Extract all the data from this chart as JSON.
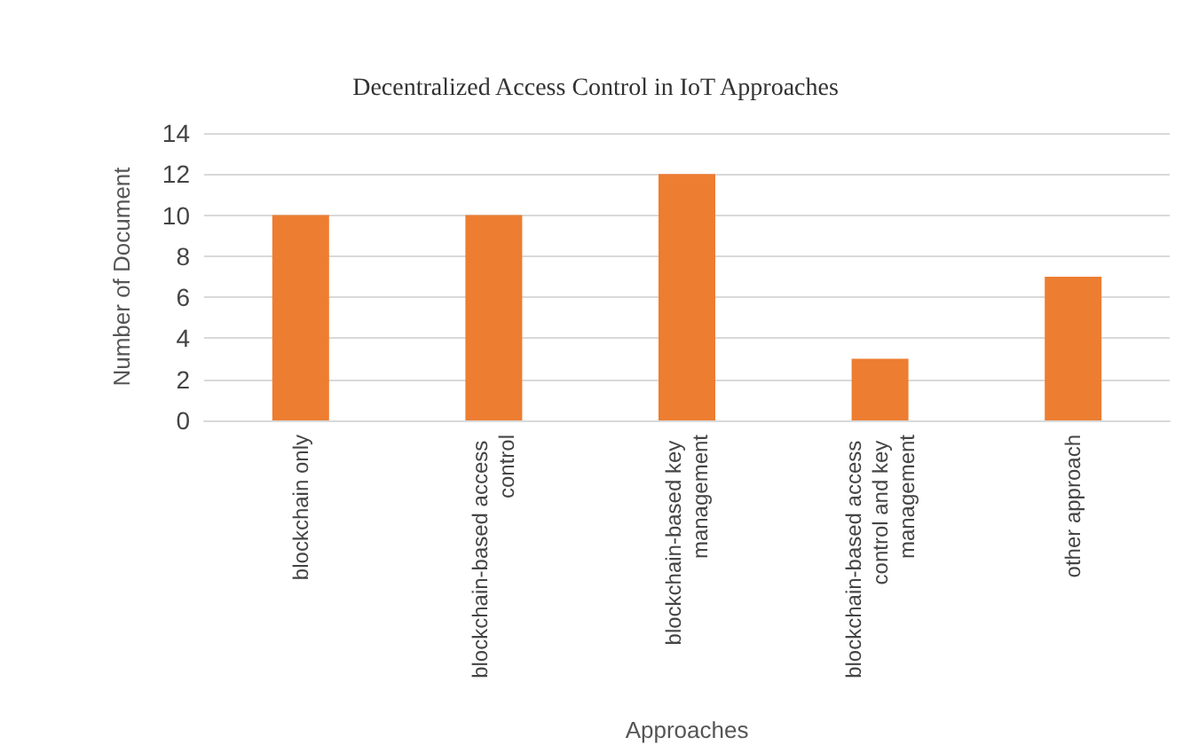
{
  "chart_data": {
    "type": "bar",
    "title": "Decentralized Access Control in IoT Approaches",
    "xlabel": "Approaches",
    "ylabel": "Number of Document",
    "categories": [
      "blockchain only",
      "blockchain-based access control",
      "blockchain-based key management",
      "blockchain-based access control and key management",
      "other approach"
    ],
    "values": [
      10,
      10,
      12,
      3,
      7
    ],
    "color": "#ed7d31",
    "ylim": [
      0,
      14
    ],
    "yticks": [
      0,
      2,
      4,
      6,
      8,
      10,
      12,
      14
    ],
    "grid": "y"
  }
}
